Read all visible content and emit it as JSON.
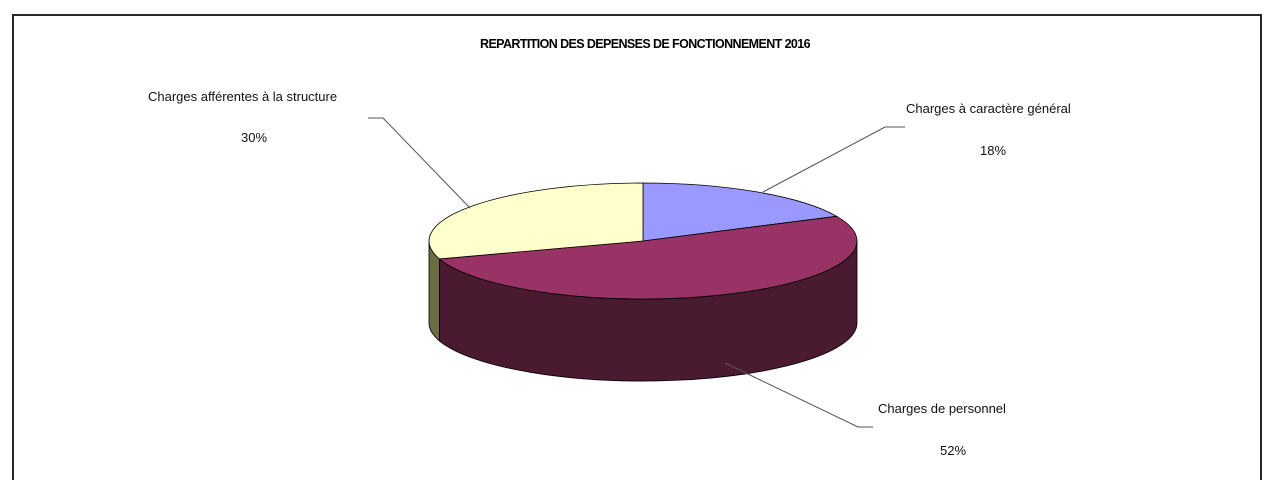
{
  "chart_data": {
    "type": "pie",
    "title": "REPARTITION DES DEPENSES DE FONCTIONNEMENT 2016",
    "slices": [
      {
        "label": "Charges à caractère général",
        "value": 18,
        "pct_label": "18%",
        "color": "#9999ff",
        "side_color": "#4c4c80"
      },
      {
        "label": "Charges de personnel",
        "value": 52,
        "pct_label": "52%",
        "color": "#993366",
        "side_color": "#4a1a30"
      },
      {
        "label": "Charges afférentes à la structure",
        "value": 30,
        "pct_label": "30%",
        "color": "#ffffcc",
        "side_color": "#6b6b44"
      }
    ],
    "legend": "none"
  }
}
